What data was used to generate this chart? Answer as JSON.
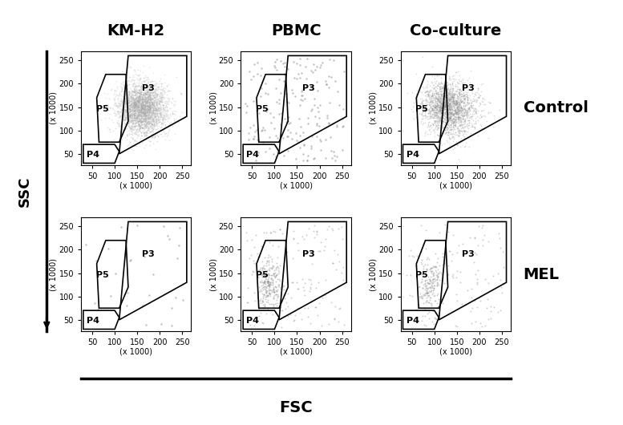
{
  "col_labels": [
    "KM-H2",
    "PBMC",
    "Co-culture"
  ],
  "row_labels": [
    "Control",
    "MEL"
  ],
  "xlabel": "FSC",
  "ylabel": "SSC",
  "axis_xlabel": "(x 1000)",
  "axis_ylabel": "(x 1000)",
  "xticks": [
    50,
    100,
    150,
    200,
    250
  ],
  "yticks": [
    50,
    100,
    150,
    200,
    250
  ],
  "xlim": [
    25,
    270
  ],
  "ylim": [
    25,
    270
  ],
  "gate_labels": [
    "P3",
    "P4",
    "P5"
  ],
  "background_color": "#ffffff",
  "dot_color_light": "#aaaaaa",
  "dot_color_dark": "#555555",
  "gate_color": "#000000",
  "seeds": {
    "kmh2_ctrl": 42,
    "pbmc_ctrl": 123,
    "coculture_ctrl": 77,
    "kmh2_mel": 200,
    "pbmc_mel": 300,
    "coculture_mel": 400
  },
  "n_points": {
    "kmh2_ctrl": 3000,
    "pbmc_ctrl": 200,
    "coculture_ctrl": 2000,
    "kmh2_mel": 30,
    "pbmc_mel": 400,
    "coculture_mel": 300
  },
  "P3_gate": [
    [
      110,
      50
    ],
    [
      260,
      130
    ],
    [
      260,
      260
    ],
    [
      130,
      260
    ]
  ],
  "P4_gate": [
    [
      30,
      30
    ],
    [
      100,
      30
    ],
    [
      110,
      55
    ],
    [
      100,
      70
    ],
    [
      30,
      70
    ]
  ],
  "P5_gate": [
    [
      65,
      75
    ],
    [
      110,
      75
    ],
    [
      130,
      120
    ],
    [
      125,
      220
    ],
    [
      80,
      220
    ],
    [
      60,
      170
    ]
  ],
  "title_fontsize": 14,
  "label_fontsize": 11,
  "tick_fontsize": 7,
  "gate_label_fontsize": 8
}
